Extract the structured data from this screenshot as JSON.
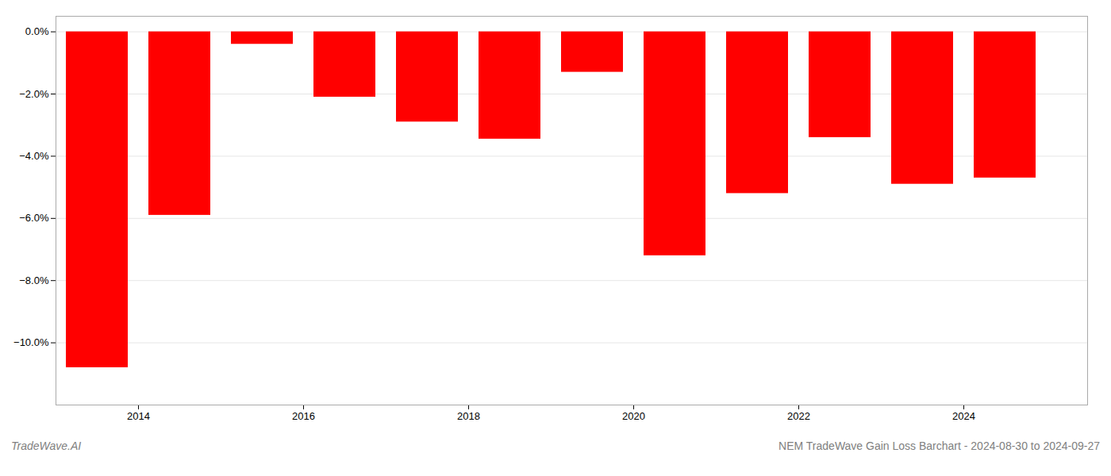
{
  "chart_data": {
    "type": "bar",
    "title": "NEM TradeWave Gain Loss Barchart - 2024-08-30 to 2024-09-27",
    "annotations": [
      "TradeWave.AI"
    ],
    "x": [
      2013.5,
      2014.5,
      2015.5,
      2016.5,
      2017.5,
      2018.5,
      2019.5,
      2020.5,
      2021.5,
      2022.5,
      2023.5,
      2024.5
    ],
    "values": [
      -10.8,
      -5.9,
      -0.4,
      -2.1,
      -2.9,
      -3.45,
      -1.3,
      -7.2,
      -5.2,
      -3.4,
      -4.9,
      -4.7
    ],
    "color": "#ff0000",
    "xlim": [
      2013.0,
      2025.5
    ],
    "xticks": [
      2014,
      2016,
      2018,
      2020,
      2022,
      2024
    ],
    "ylim": [
      -12.0,
      0.5
    ],
    "yticks": [
      {
        "value": 0.0,
        "label": "0.0%"
      },
      {
        "value": -2.0,
        "label": "−2.0%"
      },
      {
        "value": -4.0,
        "label": "−4.0%"
      },
      {
        "value": -6.0,
        "label": "−6.0%"
      },
      {
        "value": -8.0,
        "label": "−8.0%"
      },
      {
        "value": -10.0,
        "label": "−10.0%"
      }
    ],
    "grid": true
  }
}
